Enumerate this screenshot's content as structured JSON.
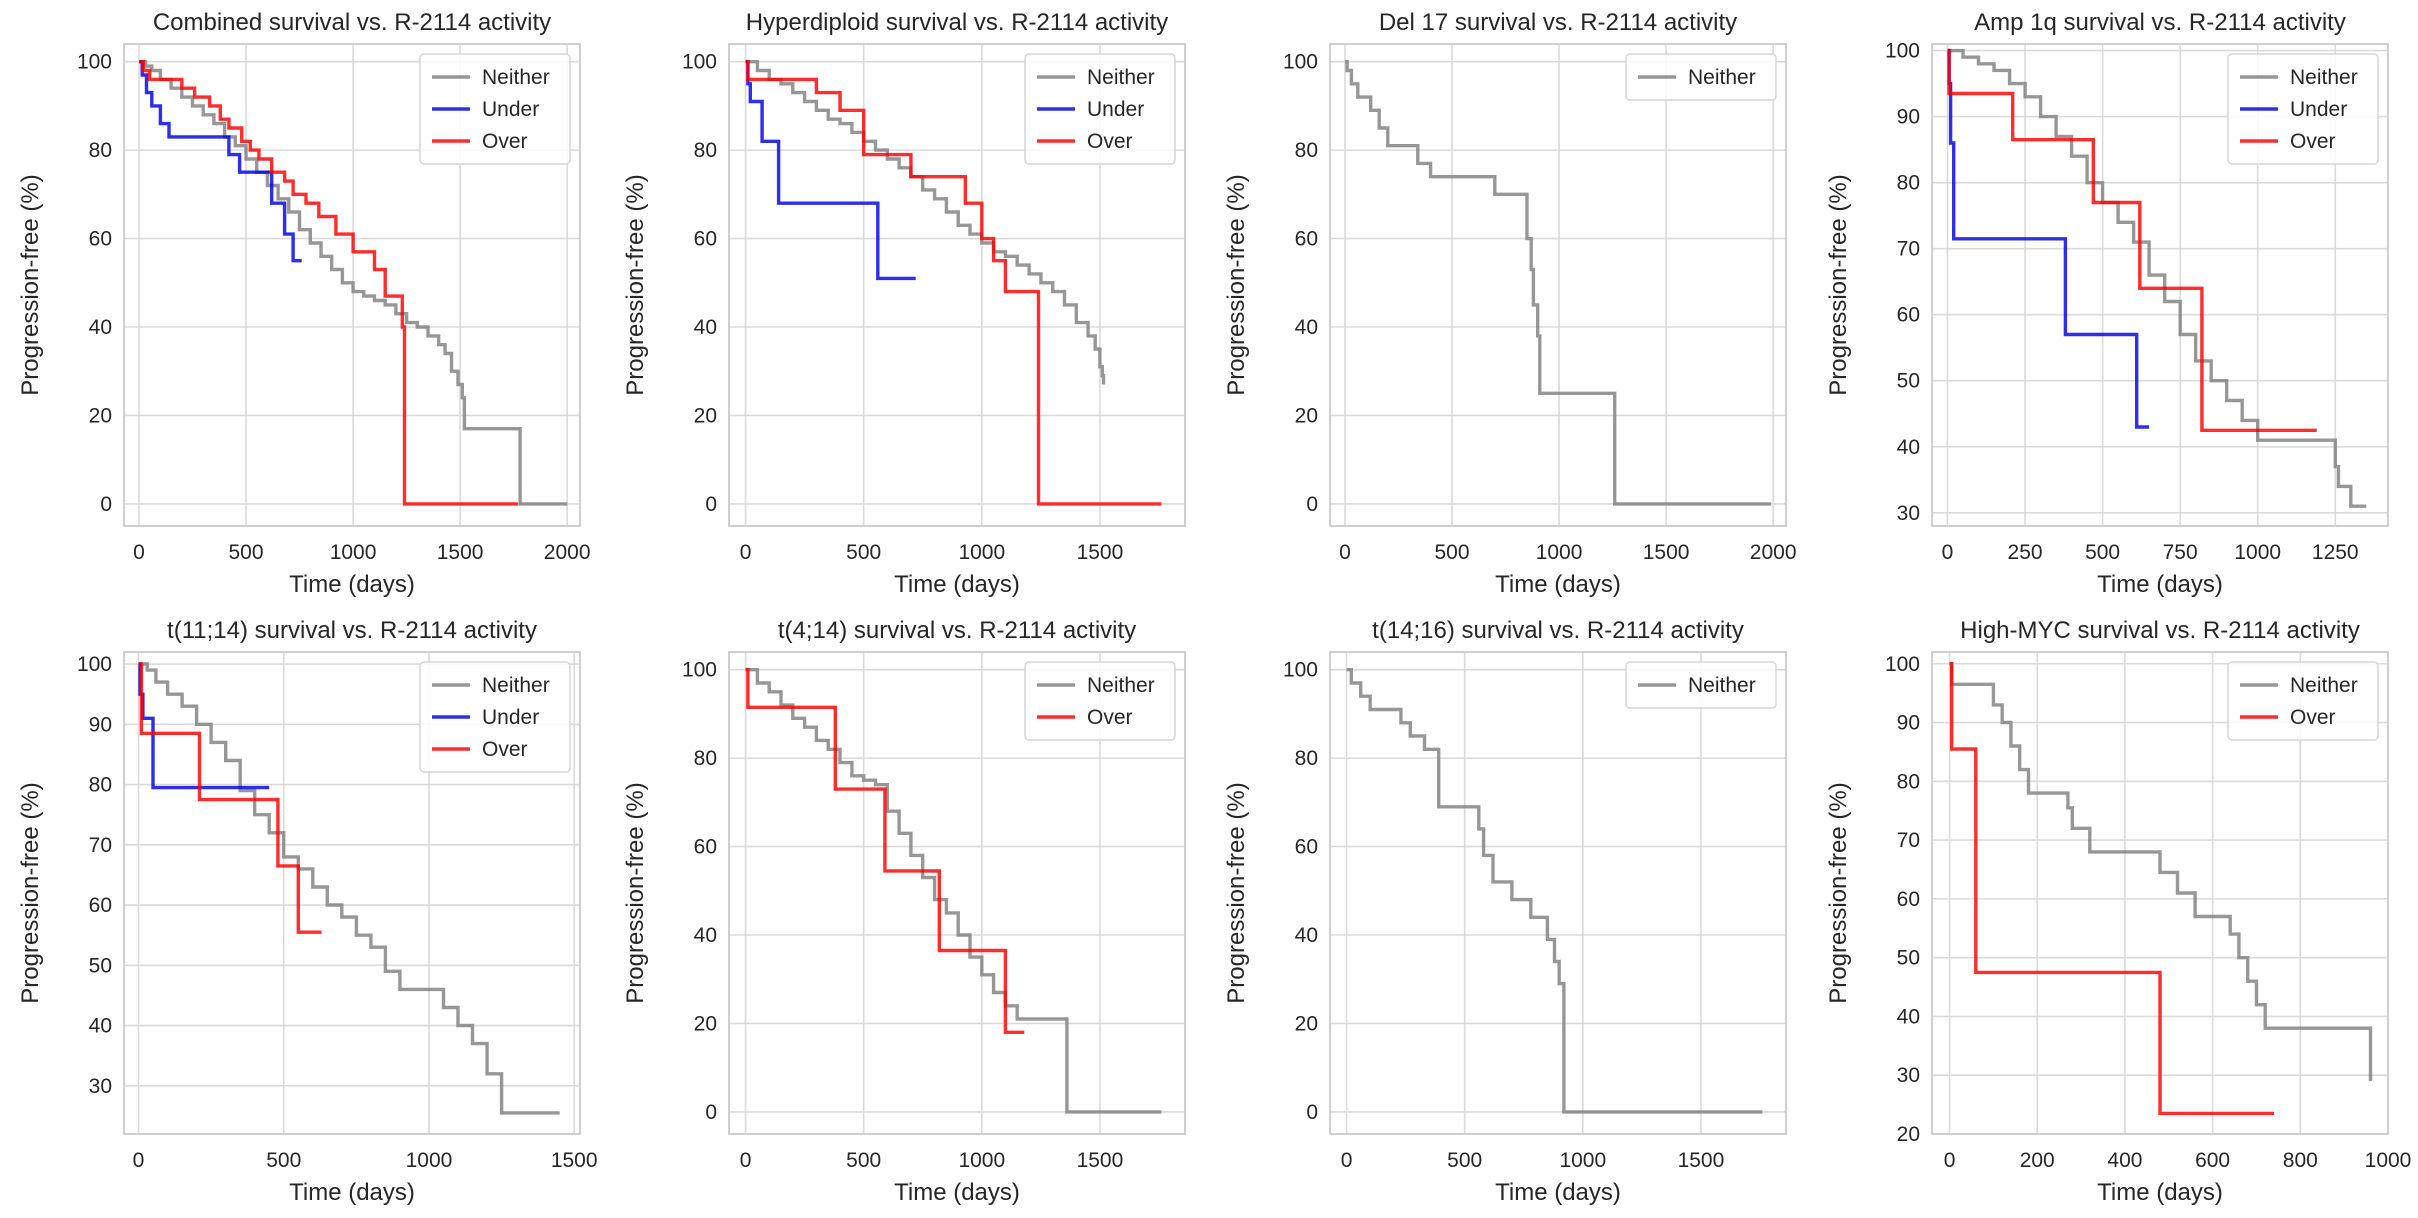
{
  "colors": {
    "Neither": "#808080",
    "Under": "#0000e6",
    "Over": "#ff0000"
  },
  "chart_data": [
    {
      "type": "line",
      "title": "Combined survival vs. R-2114 activity",
      "xlabel": "Time (days)",
      "ylabel": "Progression-free (%)",
      "xlim": [
        -70,
        2060
      ],
      "ylim": [
        -5,
        104
      ],
      "xticks": [
        0,
        500,
        1000,
        1500,
        2000
      ],
      "yticks": [
        0,
        20,
        40,
        60,
        80,
        100
      ],
      "grid": true,
      "legend_position": "top-right",
      "series": [
        {
          "name": "Neither",
          "x": [
            0,
            30,
            60,
            100,
            150,
            200,
            250,
            300,
            350,
            400,
            450,
            500,
            550,
            600,
            650,
            700,
            750,
            800,
            850,
            900,
            950,
            1000,
            1050,
            1100,
            1150,
            1200,
            1250,
            1300,
            1350,
            1400,
            1430,
            1460,
            1490,
            1510,
            1520,
            1770,
            1780,
            2000
          ],
          "y": [
            100,
            99,
            98,
            96,
            94,
            92,
            90,
            88,
            86,
            83,
            81,
            78,
            75,
            72,
            69,
            66,
            62,
            59,
            56,
            53,
            50,
            48,
            47,
            46,
            45,
            43,
            41,
            40,
            38,
            36,
            34,
            30,
            27,
            24,
            17,
            17,
            0,
            0
          ]
        },
        {
          "name": "Under",
          "x": [
            0,
            15,
            35,
            60,
            100,
            140,
            380,
            420,
            470,
            560,
            620,
            680,
            720,
            760
          ],
          "y": [
            100,
            97,
            93,
            90,
            86,
            83,
            83,
            79,
            75,
            75,
            68,
            61,
            55,
            55
          ]
        },
        {
          "name": "Over",
          "x": [
            0,
            20,
            50,
            100,
            200,
            260,
            330,
            380,
            420,
            480,
            520,
            560,
            620,
            680,
            720,
            780,
            840,
            920,
            1000,
            1050,
            1100,
            1150,
            1180,
            1230,
            1240,
            1770
          ],
          "y": [
            100,
            98,
            96,
            96,
            94,
            92,
            90,
            87,
            85,
            82,
            80,
            78,
            75,
            73,
            70,
            68,
            65,
            61,
            57,
            57,
            53,
            47,
            47,
            40,
            0,
            0
          ]
        }
      ]
    },
    {
      "type": "line",
      "title": "Hyperdiploid survival vs. R-2114 activity",
      "xlabel": "Time (days)",
      "ylabel": "Progression-free (%)",
      "xlim": [
        -70,
        1860
      ],
      "ylim": [
        -5,
        104
      ],
      "xticks": [
        0,
        500,
        1000,
        1500
      ],
      "yticks": [
        0,
        20,
        40,
        60,
        80,
        100
      ],
      "grid": true,
      "legend_position": "top-right",
      "series": [
        {
          "name": "Neither",
          "x": [
            0,
            50,
            100,
            150,
            200,
            250,
            300,
            350,
            400,
            450,
            500,
            550,
            600,
            650,
            700,
            750,
            800,
            850,
            900,
            950,
            1000,
            1050,
            1100,
            1150,
            1200,
            1250,
            1300,
            1350,
            1400,
            1450,
            1480,
            1500,
            1510,
            1515
          ],
          "y": [
            100,
            98,
            96,
            95,
            93,
            91,
            89,
            87,
            86,
            84,
            82,
            80,
            78,
            76,
            74,
            71,
            69,
            66,
            63,
            61,
            59,
            57,
            56,
            54,
            52,
            50,
            48,
            45,
            41,
            38,
            35,
            31,
            29,
            27
          ]
        },
        {
          "name": "Under",
          "x": [
            0,
            10,
            20,
            70,
            140,
            350,
            560,
            720
          ],
          "y": [
            100,
            95,
            91,
            82,
            68,
            68,
            51,
            51
          ]
        },
        {
          "name": "Over",
          "x": [
            0,
            10,
            300,
            400,
            500,
            700,
            930,
            1000,
            1050,
            1100,
            1240,
            1760
          ],
          "y": [
            100,
            96,
            93,
            89,
            79,
            74,
            68,
            60,
            55,
            48,
            0,
            0
          ]
        }
      ]
    },
    {
      "type": "line",
      "title": "Del 17 survival vs. R-2114 activity",
      "xlabel": "Time (days)",
      "ylabel": "Progression-free (%)",
      "xlim": [
        -70,
        2060
      ],
      "ylim": [
        -5,
        104
      ],
      "xticks": [
        0,
        500,
        1000,
        1500,
        2000
      ],
      "yticks": [
        0,
        20,
        40,
        60,
        80,
        100
      ],
      "grid": true,
      "legend_position": "top-right",
      "series": [
        {
          "name": "Neither",
          "x": [
            0,
            10,
            30,
            60,
            120,
            160,
            200,
            340,
            400,
            500,
            600,
            660,
            700,
            800,
            850,
            870,
            880,
            900,
            910,
            1000,
            1100,
            1200,
            1250,
            1260,
            1990
          ],
          "y": [
            100,
            98,
            95,
            92,
            89,
            85,
            81,
            77,
            74,
            74,
            74,
            74,
            70,
            70,
            60,
            53,
            45,
            38,
            25,
            25,
            25,
            25,
            25,
            0,
            0
          ]
        }
      ]
    },
    {
      "type": "line",
      "title": "Amp 1q survival vs. R-2114 activity",
      "xlabel": "Time (days)",
      "ylabel": "Progression-free (%)",
      "xlim": [
        -50,
        1420
      ],
      "ylim": [
        28,
        101
      ],
      "xticks": [
        0,
        250,
        500,
        750,
        1000,
        1250
      ],
      "yticks": [
        30,
        40,
        50,
        60,
        70,
        80,
        90,
        100
      ],
      "grid": true,
      "legend_position": "top-right",
      "series": [
        {
          "name": "Neither",
          "x": [
            0,
            50,
            100,
            150,
            200,
            250,
            300,
            350,
            400,
            450,
            500,
            550,
            600,
            650,
            700,
            750,
            800,
            850,
            900,
            950,
            1000,
            1050,
            1100,
            1150,
            1200,
            1250,
            1260,
            1300,
            1350
          ],
          "y": [
            100,
            99,
            98,
            97,
            95,
            93,
            90,
            87,
            84,
            80,
            77,
            74,
            71,
            66,
            62,
            57,
            53,
            50,
            47,
            44,
            41,
            41,
            41,
            41,
            41,
            37,
            34,
            31,
            31
          ]
        },
        {
          "name": "Under",
          "x": [
            0,
            5,
            10,
            20,
            380,
            610,
            650
          ],
          "y": [
            100,
            95,
            86,
            71.5,
            57,
            43,
            43
          ]
        },
        {
          "name": "Over",
          "x": [
            0,
            5,
            210,
            470,
            620,
            820,
            1190
          ],
          "y": [
            100,
            93.5,
            86.5,
            77,
            64,
            42.5,
            42.5
          ]
        }
      ]
    },
    {
      "type": "line",
      "title": "t(11;14) survival vs. R-2114 activity",
      "xlabel": "Time (days)",
      "ylabel": "Progression-free (%)",
      "xlim": [
        -50,
        1520
      ],
      "ylim": [
        22,
        102
      ],
      "xticks": [
        0,
        500,
        1000,
        1500
      ],
      "yticks": [
        30,
        40,
        50,
        60,
        70,
        80,
        90,
        100
      ],
      "grid": true,
      "legend_position": "top-right",
      "series": [
        {
          "name": "Neither",
          "x": [
            0,
            30,
            60,
            100,
            150,
            200,
            250,
            300,
            350,
            400,
            450,
            500,
            550,
            600,
            650,
            700,
            750,
            800,
            850,
            900,
            950,
            1000,
            1050,
            1100,
            1150,
            1200,
            1250,
            1300,
            1450
          ],
          "y": [
            100,
            99,
            97,
            95,
            93,
            90,
            87,
            84,
            79,
            75,
            72,
            68,
            66,
            63,
            60,
            58,
            55,
            53,
            49,
            46,
            46,
            46,
            43,
            40,
            37,
            32,
            25.5,
            25.5,
            25.5
          ]
        },
        {
          "name": "Under",
          "x": [
            0,
            5,
            15,
            50,
            450
          ],
          "y": [
            100,
            95,
            91,
            79.5,
            79.5
          ]
        },
        {
          "name": "Over",
          "x": [
            0,
            10,
            210,
            480,
            550,
            630
          ],
          "y": [
            100,
            88.5,
            77.5,
            66.5,
            55.5,
            55.5
          ]
        }
      ]
    },
    {
      "type": "line",
      "title": "t(4;14) survival vs. R-2114 activity",
      "xlabel": "Time (days)",
      "ylabel": "Progression-free (%)",
      "xlim": [
        -70,
        1860
      ],
      "ylim": [
        -5,
        104
      ],
      "xticks": [
        0,
        500,
        1000,
        1500
      ],
      "yticks": [
        0,
        20,
        40,
        60,
        80,
        100
      ],
      "grid": true,
      "legend_position": "top-right",
      "series": [
        {
          "name": "Neither",
          "x": [
            0,
            50,
            100,
            150,
            200,
            250,
            300,
            350,
            400,
            450,
            500,
            550,
            600,
            650,
            700,
            750,
            800,
            850,
            900,
            950,
            1000,
            1050,
            1100,
            1150,
            1200,
            1350,
            1360,
            1760
          ],
          "y": [
            100,
            97,
            95,
            92,
            89,
            87,
            84,
            82,
            79,
            76,
            75,
            74,
            68,
            63,
            58,
            53,
            48,
            45,
            40,
            35,
            31,
            27,
            24,
            21,
            21,
            21,
            0,
            0
          ]
        },
        {
          "name": "Over",
          "x": [
            0,
            10,
            380,
            590,
            820,
            1100,
            1180
          ],
          "y": [
            100,
            91.5,
            73,
            54.5,
            36.5,
            18,
            18
          ]
        }
      ]
    },
    {
      "type": "line",
      "title": "t(14;16) survival vs. R-2114 activity",
      "xlabel": "Time (days)",
      "ylabel": "Progression-free (%)",
      "xlim": [
        -70,
        1860
      ],
      "ylim": [
        -5,
        104
      ],
      "xticks": [
        0,
        500,
        1000,
        1500
      ],
      "yticks": [
        0,
        20,
        40,
        60,
        80,
        100
      ],
      "grid": true,
      "legend_position": "top-right",
      "series": [
        {
          "name": "Neither",
          "x": [
            0,
            20,
            60,
            100,
            230,
            270,
            330,
            390,
            550,
            560,
            580,
            620,
            700,
            780,
            850,
            880,
            900,
            920,
            1760
          ],
          "y": [
            100,
            97,
            94,
            91,
            88,
            85,
            82,
            69,
            69,
            64,
            58,
            52,
            48,
            44,
            39,
            34,
            29,
            0,
            0
          ]
        }
      ]
    },
    {
      "type": "line",
      "title": "High-MYC survival vs. R-2114 activity",
      "xlabel": "Time (days)",
      "ylabel": "Progression-free (%)",
      "xlim": [
        -40,
        1000
      ],
      "ylim": [
        20,
        102
      ],
      "xticks": [
        0,
        200,
        400,
        600,
        800,
        1000
      ],
      "yticks": [
        20,
        30,
        40,
        50,
        60,
        70,
        80,
        90,
        100
      ],
      "grid": true,
      "legend_position": "top-right",
      "series": [
        {
          "name": "Neither",
          "x": [
            0,
            5,
            100,
            120,
            140,
            160,
            180,
            270,
            280,
            320,
            480,
            520,
            560,
            640,
            660,
            680,
            700,
            720,
            960
          ],
          "y": [
            100,
            96.5,
            93,
            90,
            86,
            82,
            78,
            75.5,
            72,
            68,
            64.5,
            61,
            57,
            54,
            50,
            46,
            42,
            38,
            29
          ]
        },
        {
          "name": "Over",
          "x": [
            0,
            5,
            60,
            480,
            740
          ],
          "y": [
            100,
            85.5,
            47.5,
            23.5,
            23.5
          ]
        }
      ]
    }
  ]
}
